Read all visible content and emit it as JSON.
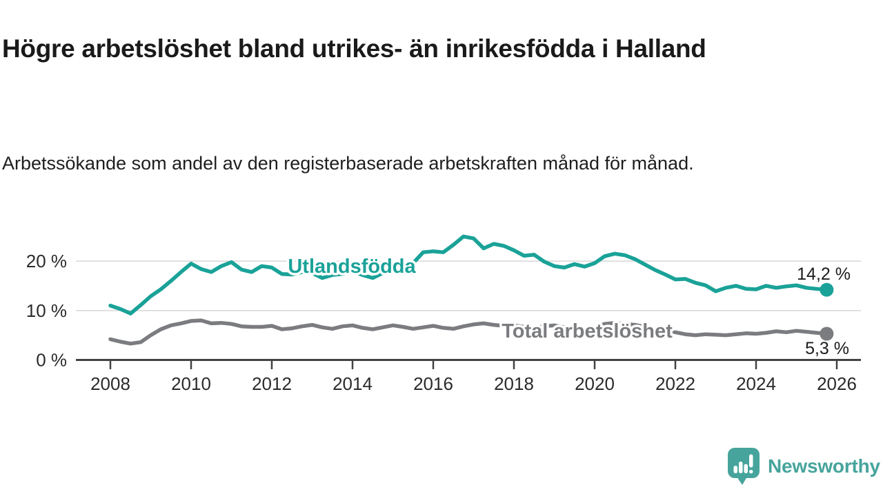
{
  "header": {
    "title": "Högre arbetslöshet bland utrikes- än inrikesfödda i Halland",
    "subtitle": "Arbetssökande som andel av den registerbaserade arbetskraften månad för månad."
  },
  "chart_data": {
    "type": "line",
    "title": "Högre arbetslöshet bland utrikes- än inrikesfödda i Halland",
    "subtitle": "Arbetssökande som andel av den registerbaserade arbetskraften månad för månad.",
    "unit": "%",
    "x_start": 2008.0,
    "x_step": 0.25,
    "x_end": 2025.75,
    "ylim": [
      0,
      26
    ],
    "grid": true,
    "legend_position": "inline-labels",
    "x_axis": {
      "ticks": [
        {
          "year": 2008,
          "label": "2008"
        },
        {
          "year": 2010,
          "label": "2010"
        },
        {
          "year": 2012,
          "label": "2012"
        },
        {
          "year": 2014,
          "label": "2014"
        },
        {
          "year": 2016,
          "label": "2016"
        },
        {
          "year": 2018,
          "label": "2018"
        },
        {
          "year": 2020,
          "label": "2020"
        },
        {
          "year": 2022,
          "label": "2022"
        },
        {
          "year": 2024,
          "label": "2024"
        },
        {
          "year": 2026,
          "label": "2026"
        }
      ]
    },
    "y_axis": {
      "ticks": [
        {
          "value": 0,
          "label": "0 %"
        },
        {
          "value": 10,
          "label": "10 %"
        },
        {
          "value": 20,
          "label": "20 %"
        }
      ]
    },
    "series": [
      {
        "name": "Utlandsfödda",
        "color": "#1aa298",
        "end_label": "14,2 %",
        "end_value": 14.2,
        "values": [
          11.0,
          10.3,
          9.4,
          11.1,
          12.9,
          14.3,
          16.0,
          17.8,
          19.5,
          18.4,
          17.8,
          19.0,
          19.8,
          18.3,
          17.8,
          19.0,
          18.7,
          17.4,
          17.3,
          17.8,
          17.6,
          16.6,
          17.2,
          17.4,
          18.0,
          17.2,
          16.6,
          17.6,
          18.4,
          18.8,
          19.6,
          21.8,
          22.0,
          21.8,
          23.3,
          25.0,
          24.6,
          22.6,
          23.5,
          23.1,
          22.2,
          21.1,
          21.3,
          19.9,
          19.0,
          18.7,
          19.4,
          18.9,
          19.6,
          21.0,
          21.5,
          21.2,
          20.4,
          19.3,
          18.2,
          17.3,
          16.3,
          16.4,
          15.6,
          15.1,
          13.9,
          14.6,
          15.0,
          14.4,
          14.3,
          15.0,
          14.6,
          14.9,
          15.1,
          14.6,
          14.4,
          14.2
        ]
      },
      {
        "name": "Total arbetslöshet",
        "color": "#7b7c7f",
        "end_label": "5,3 %",
        "end_value": 5.3,
        "values": [
          4.2,
          3.7,
          3.3,
          3.6,
          5.0,
          6.2,
          7.0,
          7.4,
          7.9,
          8.0,
          7.4,
          7.5,
          7.3,
          6.8,
          6.7,
          6.7,
          6.9,
          6.2,
          6.4,
          6.8,
          7.1,
          6.6,
          6.3,
          6.8,
          7.0,
          6.5,
          6.2,
          6.6,
          7.0,
          6.7,
          6.3,
          6.6,
          6.9,
          6.5,
          6.3,
          6.8,
          7.2,
          7.4,
          7.1,
          6.9,
          7.0,
          6.7,
          6.5,
          6.8,
          7.0,
          6.6,
          6.4,
          6.3,
          6.6,
          7.3,
          7.5,
          7.3,
          7.1,
          6.7,
          6.3,
          5.9,
          5.6,
          5.2,
          5.0,
          5.2,
          5.1,
          5.0,
          5.2,
          5.4,
          5.3,
          5.5,
          5.8,
          5.6,
          5.9,
          5.7,
          5.5,
          5.3
        ]
      }
    ]
  },
  "branding": {
    "name": "Newsworthy",
    "color": "#46a49c"
  }
}
